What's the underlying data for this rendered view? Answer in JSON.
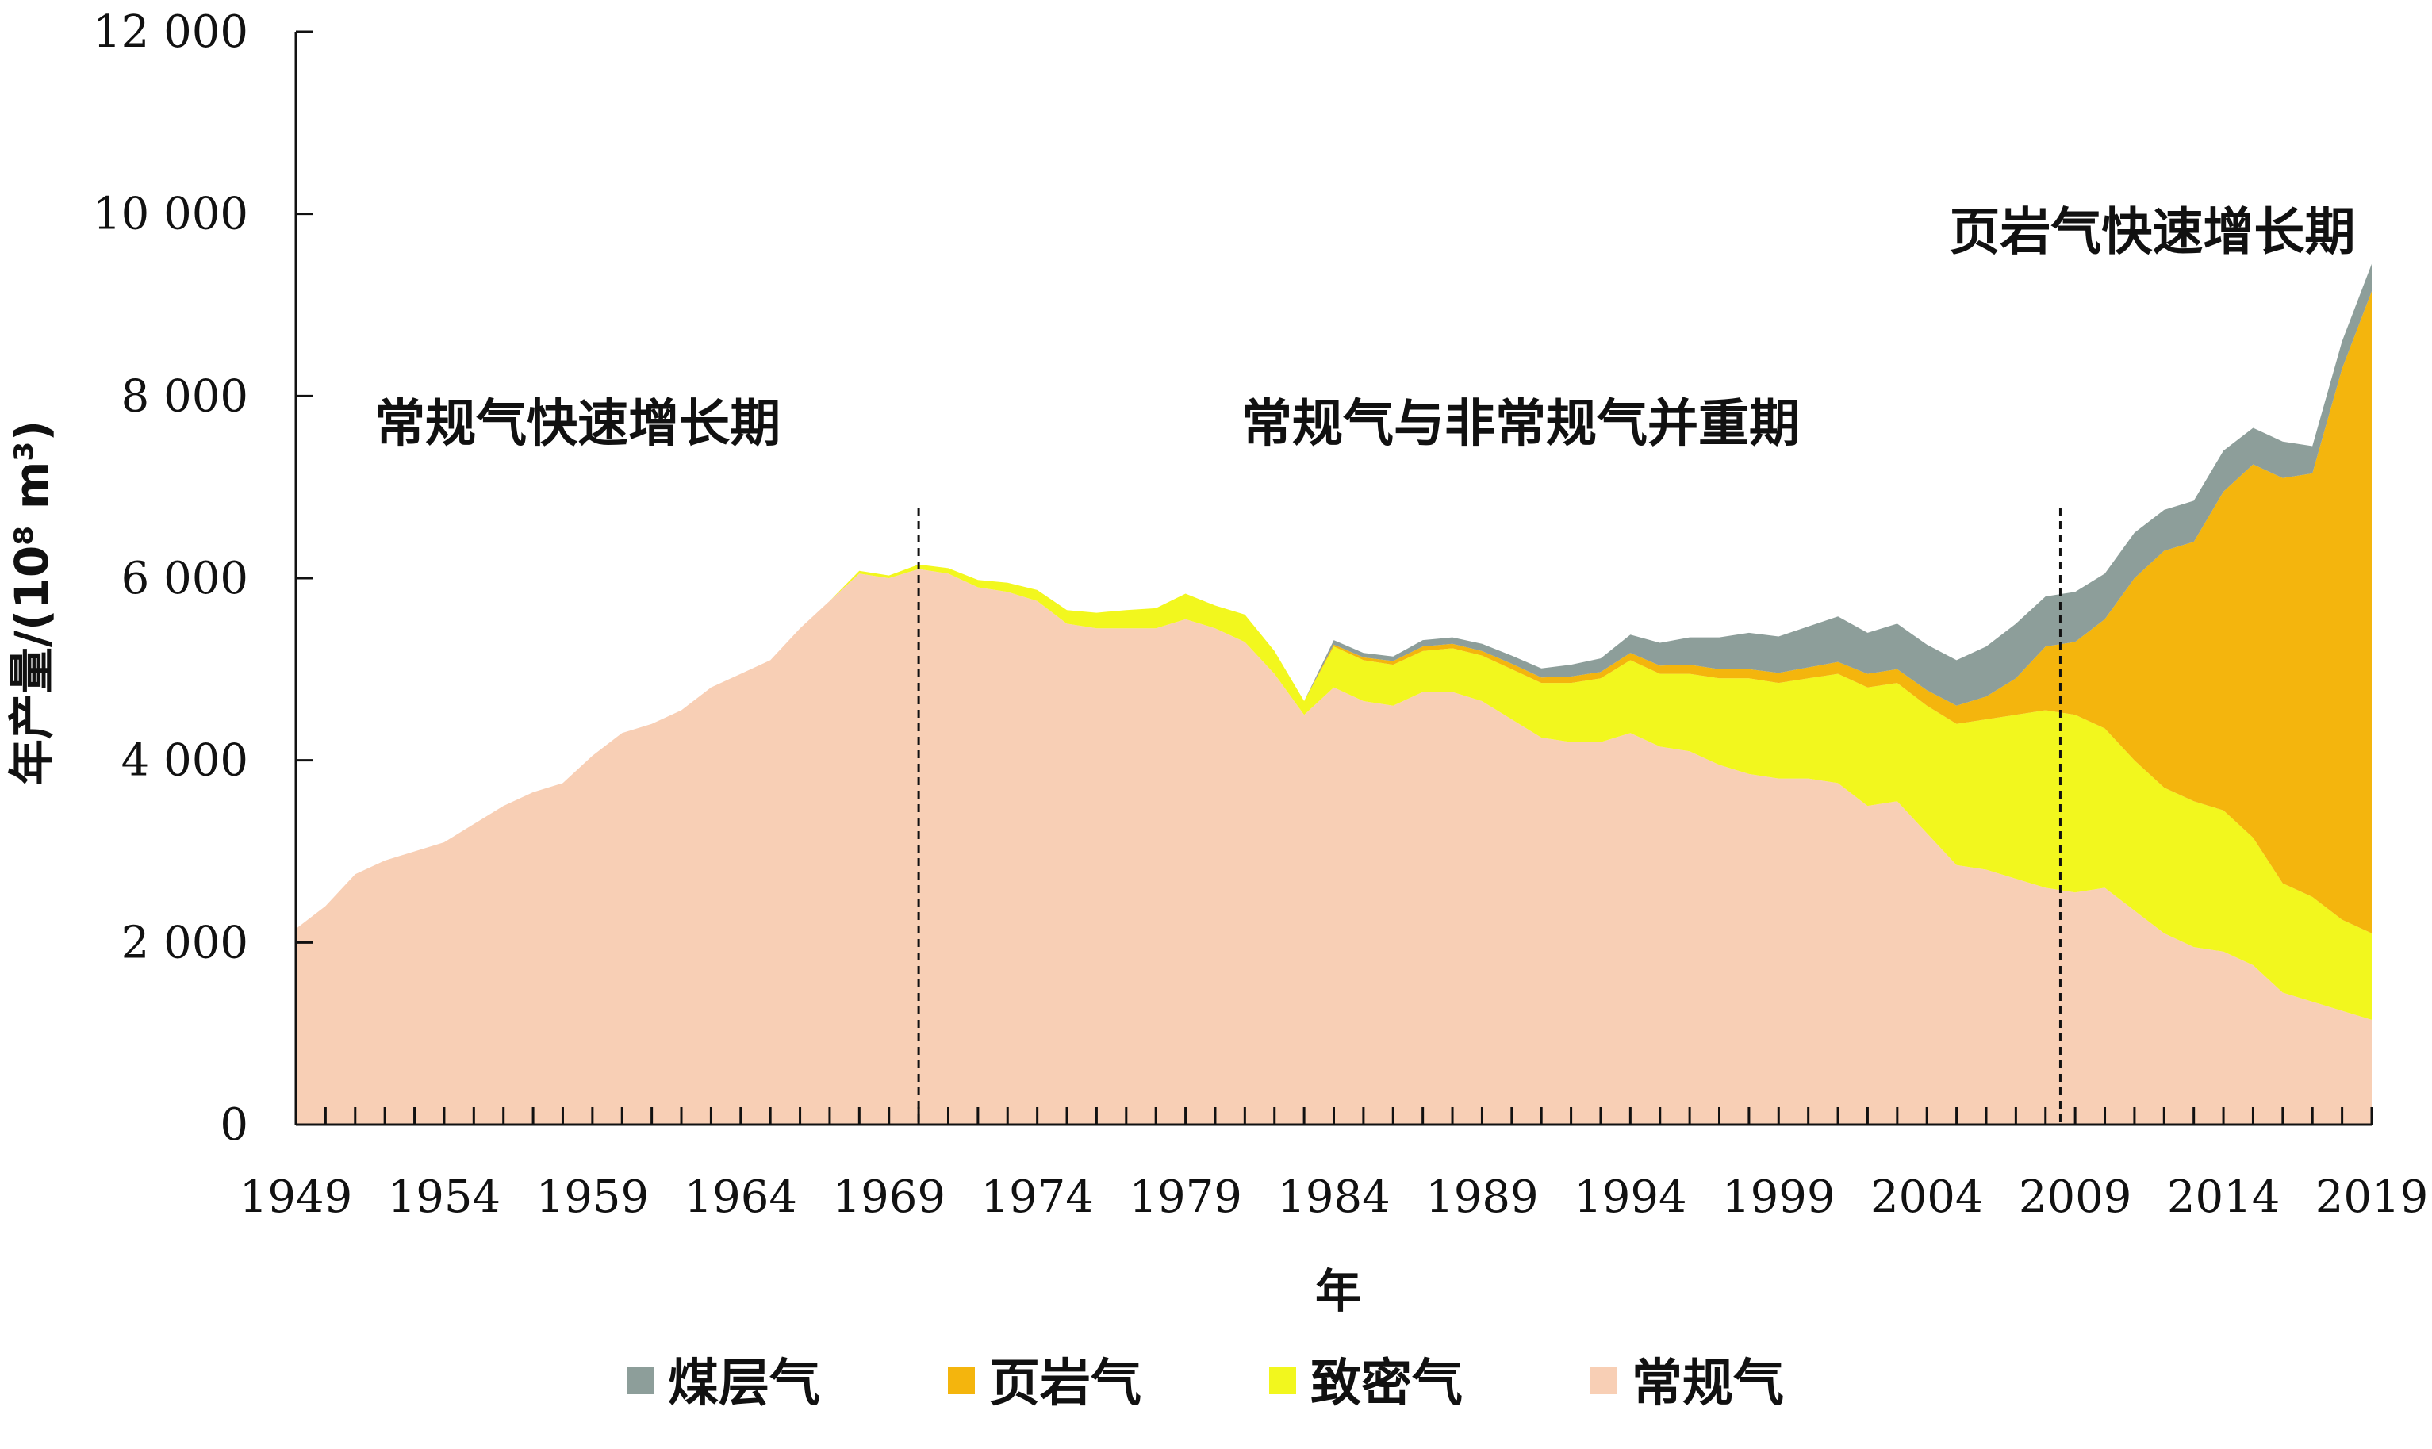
{
  "chart_data": {
    "type": "area",
    "stacked": true,
    "xlabel": "年",
    "ylabel": "年产量/(10⁸ m³)",
    "ylim": [
      0,
      12000
    ],
    "xlim": [
      1949,
      2019
    ],
    "y_ticks": [
      0,
      2000,
      4000,
      6000,
      8000,
      10000,
      12000
    ],
    "y_tick_labels": [
      "0",
      "2 000",
      "4 000",
      "6 000",
      "8 000",
      "10 000",
      "12 000"
    ],
    "x_ticks": [
      1949,
      1954,
      1959,
      1964,
      1969,
      1974,
      1979,
      1984,
      1989,
      1994,
      1999,
      2004,
      2009,
      2014,
      2019
    ],
    "x_tick_labels": [
      "1949",
      "1954",
      "1959",
      "1964",
      "1969",
      "1974",
      "1979",
      "1984",
      "1989",
      "1994",
      "1999",
      "2004",
      "2009",
      "2014",
      "2019"
    ],
    "grid": false,
    "legend_position": "bottom",
    "x": [
      1949,
      1950,
      1951,
      1952,
      1953,
      1954,
      1955,
      1956,
      1957,
      1958,
      1959,
      1960,
      1961,
      1962,
      1963,
      1964,
      1965,
      1966,
      1967,
      1968,
      1969,
      1970,
      1971,
      1972,
      1973,
      1974,
      1975,
      1976,
      1977,
      1978,
      1979,
      1980,
      1981,
      1982,
      1983,
      1984,
      1985,
      1986,
      1987,
      1988,
      1989,
      1990,
      1991,
      1992,
      1993,
      1994,
      1995,
      1996,
      1997,
      1998,
      1999,
      2000,
      2001,
      2002,
      2003,
      2004,
      2005,
      2006,
      2007,
      2008,
      2009,
      2010,
      2011,
      2012,
      2013,
      2014,
      2015,
      2016,
      2017,
      2018,
      2019
    ],
    "series": [
      {
        "name": "常规气",
        "color": "#f8cfb5",
        "values": [
          2150,
          2400,
          2750,
          2900,
          3000,
          3100,
          3300,
          3500,
          3650,
          3750,
          4050,
          4300,
          4400,
          4550,
          4800,
          4950,
          5100,
          5450,
          5750,
          6050,
          6000,
          6100,
          6050,
          5900,
          5850,
          5750,
          5500,
          5450,
          5450,
          5450,
          5550,
          5450,
          5300,
          4950,
          4500,
          4800,
          4650,
          4600,
          4750,
          4750,
          4650,
          4450,
          4250,
          4200,
          4200,
          4300,
          4150,
          4100,
          3950,
          3850,
          3800,
          3800,
          3750,
          3500,
          3550,
          3200,
          2850,
          2800,
          2700,
          2600,
          2550,
          2600,
          2350,
          2100,
          1950,
          1900,
          1750,
          1450,
          1350,
          1250,
          1150
        ]
      },
      {
        "name": "致密气",
        "color": "#f2f71e",
        "values": [
          0,
          0,
          0,
          0,
          0,
          0,
          0,
          0,
          0,
          0,
          0,
          0,
          0,
          0,
          0,
          0,
          0,
          0,
          0,
          30,
          30,
          50,
          60,
          80,
          100,
          120,
          150,
          170,
          200,
          220,
          280,
          250,
          300,
          250,
          150,
          450,
          450,
          450,
          450,
          480,
          500,
          550,
          600,
          650,
          700,
          800,
          800,
          850,
          950,
          1050,
          1050,
          1100,
          1200,
          1300,
          1300,
          1400,
          1550,
          1650,
          1800,
          1950,
          1950,
          1750,
          1650,
          1600,
          1600,
          1550,
          1400,
          1200,
          1150,
          1000,
          950
        ]
      },
      {
        "name": "页岩气",
        "color": "#f4b50d",
        "values": [
          0,
          0,
          0,
          0,
          0,
          0,
          0,
          0,
          0,
          0,
          0,
          0,
          0,
          0,
          0,
          0,
          0,
          0,
          0,
          0,
          0,
          0,
          0,
          0,
          0,
          0,
          0,
          0,
          0,
          0,
          0,
          0,
          0,
          0,
          0,
          20,
          30,
          40,
          50,
          50,
          50,
          60,
          60,
          70,
          70,
          80,
          90,
          100,
          100,
          100,
          110,
          120,
          130,
          150,
          150,
          170,
          200,
          250,
          400,
          700,
          800,
          1200,
          2000,
          2600,
          2850,
          3500,
          4100,
          4450,
          4650,
          6050,
          7050
        ]
      },
      {
        "name": "煤层气",
        "color": "#8d9e9a",
        "values": [
          0,
          0,
          0,
          0,
          0,
          0,
          0,
          0,
          0,
          0,
          0,
          0,
          0,
          0,
          0,
          0,
          0,
          0,
          0,
          0,
          0,
          0,
          0,
          0,
          0,
          0,
          0,
          0,
          0,
          0,
          0,
          0,
          0,
          0,
          0,
          50,
          50,
          50,
          70,
          70,
          80,
          90,
          100,
          130,
          150,
          200,
          250,
          300,
          350,
          400,
          400,
          450,
          500,
          450,
          500,
          500,
          500,
          550,
          600,
          550,
          550,
          500,
          500,
          450,
          450,
          450,
          400,
          400,
          300,
          300,
          300
        ]
      }
    ],
    "legend_order": [
      "煤层气",
      "页岩气",
      "致密气",
      "常规气"
    ],
    "phase_markers": [
      1970,
      2008.5
    ],
    "annotations": [
      {
        "text": "常规气快速增长期",
        "x": 1958.5,
        "y": 7700
      },
      {
        "text": "常规气与非常规气并重期",
        "x": 1990.3,
        "y": 7700
      },
      {
        "text": "页岩气快速增长期",
        "x": 2011.6,
        "y": 9800
      }
    ]
  }
}
